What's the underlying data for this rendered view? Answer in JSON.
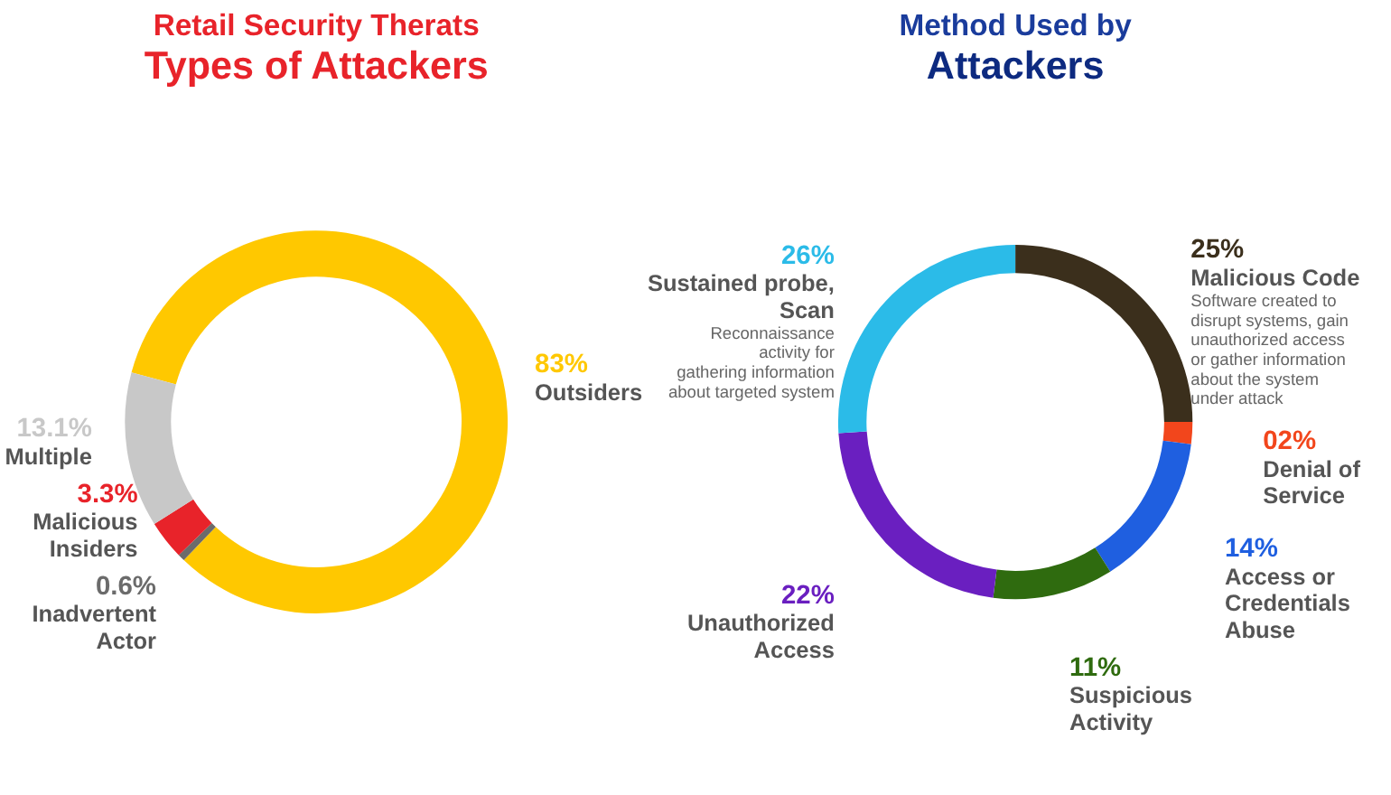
{
  "chart_data": [
    {
      "type": "donut",
      "title": "Retail Security Therats",
      "subtitle": "Types of Attackers",
      "categories": [
        "Outsiders",
        "Inadvertent Actor",
        "Malicious Insiders",
        "Multiple"
      ],
      "values": [
        83,
        0.6,
        3.3,
        13.1
      ],
      "colors": [
        "#ffc800",
        "#6b6b6b",
        "#e8232a",
        "#c8c8c8"
      ],
      "value_labels": [
        "83%",
        "0.6%",
        "3.3%",
        "13.1%"
      ]
    },
    {
      "type": "donut",
      "title": "Method Used by",
      "subtitle": "Attackers",
      "categories": [
        "Malicious Code",
        "Denial of Service",
        "Access or Credentials Abuse",
        "Suspicious Activity",
        "Unauthorized Access",
        "Sustained probe, Scan"
      ],
      "values": [
        25,
        2,
        14,
        11,
        22,
        26
      ],
      "colors": [
        "#3b2f1c",
        "#f2461c",
        "#1f5fe0",
        "#2f6b0f",
        "#6a1fc0",
        "#2bbbe8"
      ],
      "value_labels": [
        "25%",
        "02%",
        "14%",
        "11%",
        "22%",
        "26%"
      ],
      "annotations": [
        {
          "text": "Reconnaissance activity for gathering information about targeted system",
          "x": "Sustained probe, Scan"
        },
        {
          "text": "Software created to disrupt systems, gain unauthorized access or gather information about the system under attack",
          "x": "Malicious Code"
        }
      ]
    }
  ]
}
